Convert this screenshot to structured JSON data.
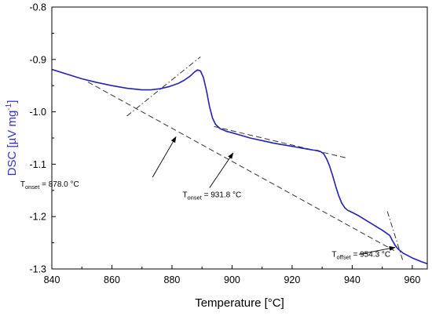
{
  "chart_data": {
    "type": "line",
    "title": "",
    "xlabel": "Temperature [°C]",
    "ylabel": "DSC [µV mg",
    "ylabel_sup": "-1",
    "ylabel_tail": "]",
    "ylabel_color": "#3333cc",
    "xlim": [
      840,
      965
    ],
    "ylim": [
      -1.3,
      -0.8
    ],
    "x_ticks": [
      840,
      860,
      880,
      900,
      920,
      940,
      960
    ],
    "x_tick_labels": [
      "840",
      "860",
      "880",
      "900",
      "920",
      "940",
      "960"
    ],
    "y_ticks": [
      -0.8,
      -0.9,
      -1.0,
      -1.1,
      -1.2,
      -1.3
    ],
    "y_tick_labels": [
      "-0.8",
      "-0.9",
      "-1.0",
      "-1.1",
      "-1.2",
      "-1.3"
    ],
    "grid": false,
    "series": [
      {
        "color": "#2222bb",
        "x": [
          840,
          845,
          850,
          855,
          860,
          865,
          870,
          873,
          876,
          879,
          882,
          884,
          886,
          887.5,
          888.5,
          889.5,
          890.5,
          891.5,
          892.5,
          893.5,
          894.5,
          896,
          898,
          900,
          903,
          906,
          910,
          914,
          918,
          922,
          925,
          927,
          928.5,
          929.5,
          930.5,
          931.5,
          932.5,
          933.5,
          934.5,
          935.5,
          936.5,
          937.5,
          938.5,
          940,
          942,
          944,
          946,
          948,
          950,
          951.5,
          952.5,
          953.3,
          954.3,
          955.3,
          957,
          960,
          963,
          965
        ],
        "y": [
          -0.919,
          -0.928,
          -0.937,
          -0.944,
          -0.95,
          -0.955,
          -0.958,
          -0.958,
          -0.956,
          -0.952,
          -0.946,
          -0.94,
          -0.932,
          -0.924,
          -0.92,
          -0.922,
          -0.935,
          -0.96,
          -0.99,
          -1.012,
          -1.024,
          -1.032,
          -1.037,
          -1.04,
          -1.045,
          -1.05,
          -1.055,
          -1.06,
          -1.064,
          -1.068,
          -1.071,
          -1.073,
          -1.074,
          -1.076,
          -1.08,
          -1.09,
          -1.104,
          -1.122,
          -1.142,
          -1.16,
          -1.174,
          -1.183,
          -1.188,
          -1.192,
          -1.198,
          -1.205,
          -1.212,
          -1.219,
          -1.226,
          -1.232,
          -1.236,
          -1.245,
          -1.255,
          -1.262,
          -1.27,
          -1.279,
          -1.286,
          -1.29
        ]
      }
    ],
    "tangent_lines": [
      {
        "style": "dash",
        "x": [
          852,
          954
        ],
        "y": [
          -0.943,
          -1.265
        ]
      },
      {
        "style": "dashdot",
        "x": [
          865,
          889.5
        ],
        "y": [
          -1.008,
          -0.895
        ]
      },
      {
        "style": "dash",
        "x": [
          894,
          938
        ],
        "y": [
          -1.028,
          -1.088
        ]
      },
      {
        "style": "dashdot",
        "x": [
          951.7,
          956.8
        ],
        "y": [
          -1.19,
          -1.283
        ]
      }
    ],
    "annotations": [
      {
        "main": "T",
        "sub": "onset",
        "text": " = 878.0 °C",
        "label_x": 829.5,
        "label_y": -1.143,
        "arrow_from": [
          873.5,
          -1.125
        ],
        "arrow_to": [
          881.3,
          -1.048
        ]
      },
      {
        "main": "T",
        "sub": "onset",
        "text": " = 931.8 °C",
        "label_x": 883.5,
        "label_y": -1.163,
        "arrow_from": [
          892.5,
          -1.145
        ],
        "arrow_to": [
          900.3,
          -1.079
        ]
      },
      {
        "main": "T",
        "sub": "offset",
        "text": " = 954.3 °C",
        "label_x": 933.2,
        "label_y": -1.277,
        "arrow_from": [
          942.2,
          -1.272
        ],
        "arrow_to": [
          954.2,
          -1.259
        ]
      }
    ]
  }
}
